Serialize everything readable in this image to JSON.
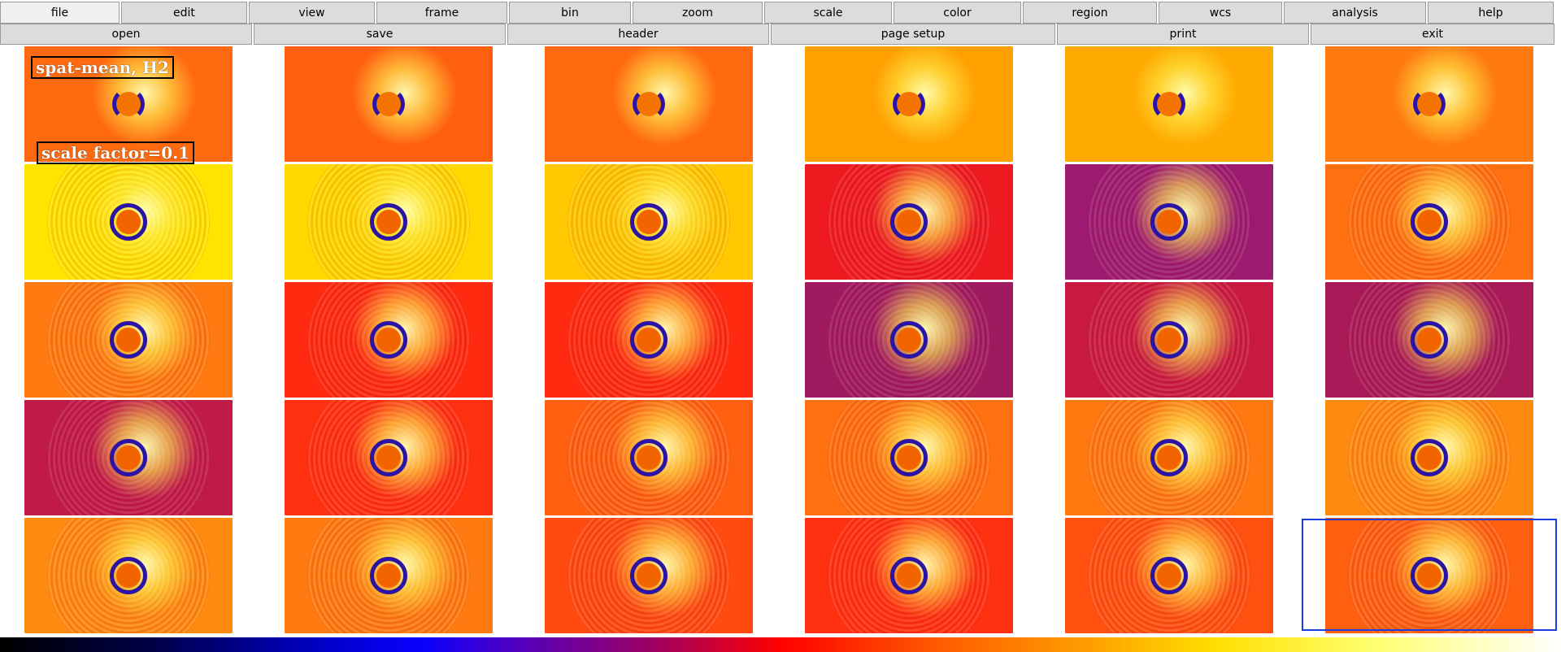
{
  "menubar": {
    "items": [
      {
        "label": "file",
        "active": true
      },
      {
        "label": "edit"
      },
      {
        "label": "view"
      },
      {
        "label": "frame"
      },
      {
        "label": "bin"
      },
      {
        "label": "zoom"
      },
      {
        "label": "scale"
      },
      {
        "label": "color"
      },
      {
        "label": "region"
      },
      {
        "label": "wcs"
      },
      {
        "label": "analysis"
      },
      {
        "label": "help"
      }
    ]
  },
  "buttonbar": {
    "items": [
      {
        "label": "open"
      },
      {
        "label": "save"
      },
      {
        "label": "header"
      },
      {
        "label": "page setup"
      },
      {
        "label": "print"
      },
      {
        "label": "exit"
      }
    ]
  },
  "frames": {
    "rows": 5,
    "cols": 6,
    "tints": [
      [
        "#ff6a10",
        "#ff6010",
        "#ff6a10",
        "#ffa000",
        "#ffaa00",
        "#ff7a10"
      ],
      [
        "#ffe400",
        "#ffd800",
        "#ffc800",
        "#ee1a20",
        "#9c1a70",
        "#ff7010"
      ],
      [
        "#ff7a10",
        "#ff2a10",
        "#ff2a10",
        "#a01a60",
        "#c81a40",
        "#a81a58"
      ],
      [
        "#c01a48",
        "#ff3010",
        "#ff6010",
        "#ff7010",
        "#ff7810",
        "#ff8a10"
      ],
      [
        "#ff8a10",
        "#ff7a10",
        "#ff4a10",
        "#ff3010",
        "#ff5010",
        "#ff6010"
      ]
    ]
  },
  "overlay": {
    "title": "spat-mean, H2",
    "scale_text": "scale factor=0.1"
  },
  "selected_frame": {
    "row": 4,
    "col": 5
  },
  "colors": {
    "selection": "#1a3ce0",
    "menu_bg": "#dcdcdc"
  }
}
